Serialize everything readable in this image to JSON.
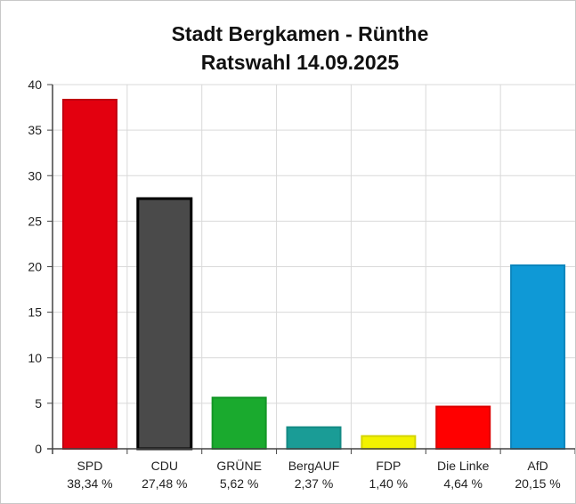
{
  "chart_data": {
    "type": "bar",
    "title": [
      "Stadt Bergkamen - Rünthe",
      "Ratswahl 14.09.2025"
    ],
    "categories": [
      "SPD",
      "CDU",
      "GRÜNE",
      "BergAUF",
      "FDP",
      "Die Linke",
      "AfD"
    ],
    "values": [
      38.34,
      27.48,
      5.62,
      2.37,
      1.4,
      4.64,
      20.15
    ],
    "value_labels": [
      "38,34 %",
      "27,48 %",
      "5,62 %",
      "2,37 %",
      "1,40 %",
      "4,64 %",
      "20,15 %"
    ],
    "colors": [
      "#e3000f",
      "#4a4a4a",
      "#1aaa2e",
      "#1a9c96",
      "#f2f200",
      "#ff0000",
      "#0f99d6"
    ],
    "outline_colors": [
      "#c00010",
      "#000000",
      "#139626",
      "#138a84",
      "#d4d400",
      "#dd0000",
      "#0c86bd"
    ],
    "ylim": [
      0,
      40
    ],
    "yticks": [
      0,
      5,
      10,
      15,
      20,
      25,
      30,
      35,
      40
    ],
    "xlabel": "",
    "ylabel": "",
    "grid": true,
    "legend": "none"
  }
}
